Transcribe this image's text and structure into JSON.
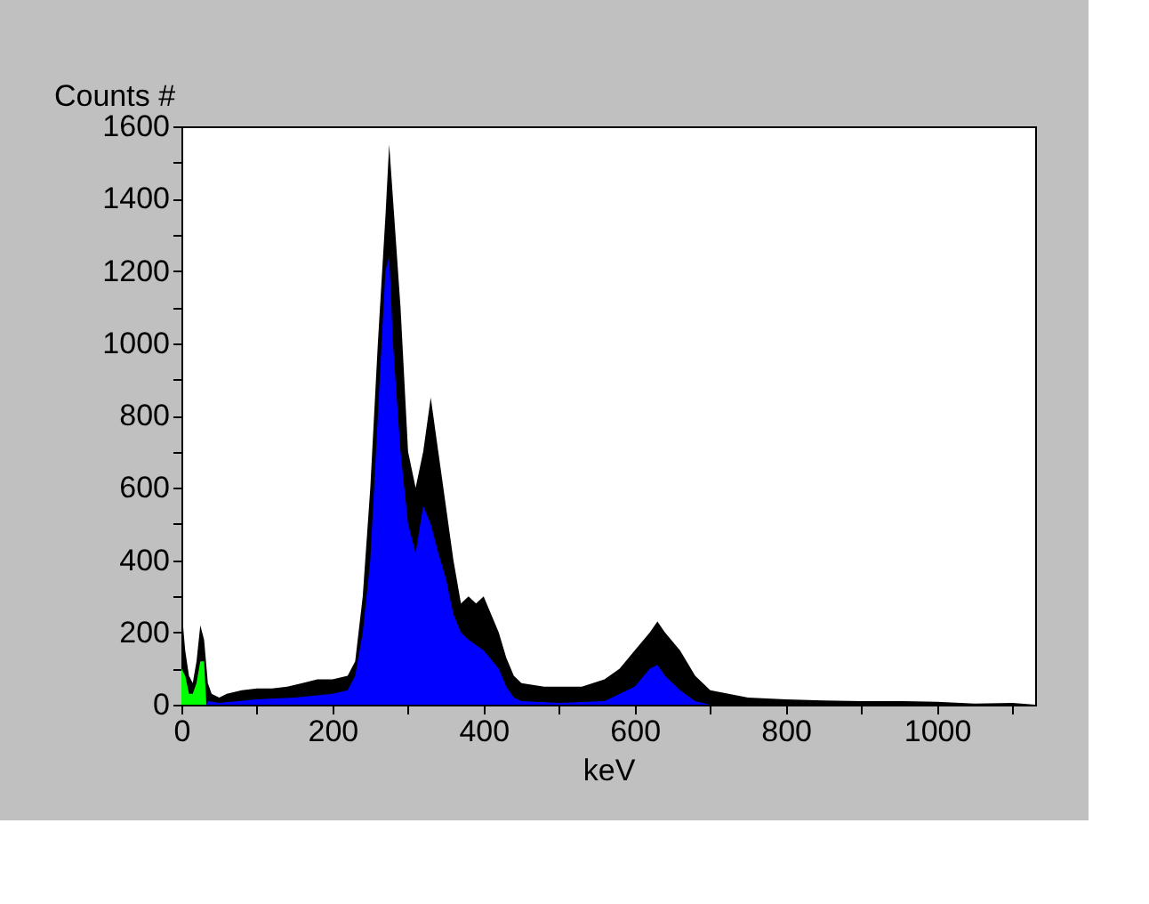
{
  "chart_data": {
    "type": "area",
    "ylabel": "Counts #",
    "xlabel": "keV",
    "xlim": [
      0,
      1130
    ],
    "ylim": [
      0,
      1600
    ],
    "xticks": [
      0,
      {
        "value": 100,
        "label": null
      },
      200,
      {
        "value": 300,
        "label": null
      },
      400,
      {
        "value": 500,
        "label": null
      },
      600,
      {
        "value": 700,
        "label": null
      },
      800,
      {
        "value": 900,
        "label": null
      },
      1000,
      {
        "value": 1100,
        "label": null
      }
    ],
    "yticks": [
      0,
      {
        "value": 100,
        "label": null
      },
      200,
      {
        "value": 300,
        "label": null
      },
      400,
      {
        "value": 500,
        "label": null
      },
      600,
      {
        "value": 700,
        "label": null
      },
      800,
      {
        "value": 900,
        "label": null
      },
      1000,
      {
        "value": 1100,
        "label": null
      },
      1200,
      {
        "value": 1300,
        "label": null
      },
      1400,
      {
        "value": 1500,
        "label": null
      },
      1600
    ],
    "grid": false,
    "series": [
      {
        "color": "#000000",
        "x": [
          0,
          5,
          10,
          15,
          20,
          25,
          30,
          35,
          40,
          50,
          60,
          80,
          100,
          120,
          140,
          160,
          180,
          200,
          220,
          230,
          240,
          250,
          260,
          270,
          275,
          280,
          290,
          300,
          310,
          320,
          330,
          340,
          350,
          360,
          370,
          380,
          390,
          400,
          410,
          420,
          430,
          440,
          450,
          480,
          500,
          530,
          560,
          580,
          600,
          620,
          630,
          640,
          660,
          680,
          700,
          750,
          800,
          850,
          900,
          950,
          1000,
          1050,
          1100,
          1130
        ],
        "values": [
          270,
          150,
          80,
          60,
          120,
          220,
          180,
          60,
          30,
          20,
          30,
          40,
          45,
          45,
          50,
          60,
          70,
          70,
          80,
          120,
          300,
          600,
          1000,
          1350,
          1550,
          1400,
          1100,
          700,
          600,
          700,
          850,
          700,
          550,
          400,
          280,
          300,
          280,
          300,
          250,
          200,
          130,
          80,
          60,
          50,
          50,
          50,
          70,
          100,
          150,
          200,
          230,
          200,
          150,
          80,
          40,
          20,
          15,
          12,
          10,
          10,
          8,
          3,
          5,
          0
        ]
      },
      {
        "color": "#0000ff",
        "x": [
          33,
          35,
          50,
          100,
          150,
          200,
          220,
          230,
          240,
          250,
          260,
          270,
          275,
          280,
          290,
          300,
          310,
          320,
          330,
          340,
          350,
          360,
          370,
          380,
          400,
          420,
          430,
          440,
          450,
          500,
          560,
          600,
          620,
          630,
          640,
          660,
          680,
          700
        ],
        "values": [
          0,
          10,
          5,
          15,
          20,
          30,
          40,
          80,
          200,
          400,
          800,
          1200,
          1240,
          1000,
          700,
          500,
          420,
          550,
          500,
          420,
          350,
          250,
          200,
          180,
          150,
          100,
          50,
          20,
          10,
          5,
          10,
          50,
          100,
          110,
          80,
          40,
          10,
          0
        ]
      },
      {
        "color": "#00ff00",
        "x": [
          0,
          5,
          10,
          15,
          20,
          25,
          30,
          33
        ],
        "values": [
          100,
          80,
          30,
          30,
          60,
          120,
          120,
          0
        ]
      }
    ]
  }
}
